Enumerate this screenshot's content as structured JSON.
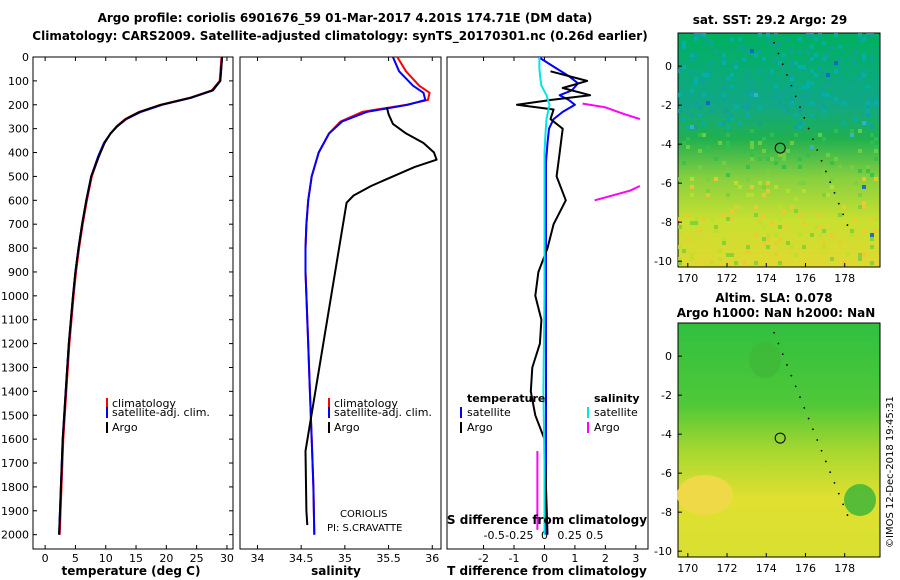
{
  "title": {
    "line1": "Argo profile: coriolis 6901676_59 01-Mar-2017 4.201S 174.71E (DM data)",
    "line2": "Climatology: CARS2009. Satellite-adjusted climatology: synTS_20170301.nc (0.26d earlier)"
  },
  "colors": {
    "climatology": "#ff0000",
    "satellite": "#0000ff",
    "argo": "#000000",
    "sat_salinity": "#00e5e5",
    "argo_salinity": "#ff00ff"
  },
  "depth_ticks": [
    "0",
    "100",
    "200",
    "300",
    "400",
    "500",
    "600",
    "700",
    "800",
    "900",
    "1000",
    "1100",
    "1200",
    "1300",
    "1400",
    "1500",
    "1600",
    "1700",
    "1800",
    "1900",
    "2000"
  ],
  "chart_data": [
    {
      "type": "line",
      "id": "temperature",
      "xlabel": "temperature (deg C)",
      "ylabel": "depth",
      "xlim": [
        -2,
        31
      ],
      "ylim": [
        2060,
        0
      ],
      "xticks": [
        "0",
        "5",
        "10",
        "15",
        "20",
        "25",
        "30"
      ],
      "xtick_values": [
        0,
        5,
        10,
        15,
        20,
        25,
        30
      ],
      "legend": [
        "climatology",
        "satellite-adj. clim.",
        "Argo"
      ],
      "series": [
        {
          "name": "climatology",
          "color": "#ff0000",
          "depth": [
            0,
            100,
            140,
            170,
            200,
            230,
            260,
            290,
            320,
            360,
            420,
            500,
            600,
            700,
            800,
            900,
            1000,
            1200,
            1400,
            1600,
            1800,
            2000
          ],
          "values": [
            29.1,
            28.8,
            27.5,
            24,
            19,
            15.5,
            13.2,
            11.8,
            10.8,
            9.8,
            8.8,
            7.7,
            6.9,
            6.2,
            5.6,
            5.1,
            4.7,
            4,
            3.5,
            3,
            2.7,
            2.4
          ]
        },
        {
          "name": "satellite-adj. clim.",
          "color": "#0000ff",
          "depth": [
            0,
            100,
            140,
            170,
            200,
            230,
            260,
            290,
            320,
            360,
            420,
            500,
            600,
            700,
            800,
            900,
            1000,
            1200,
            1400,
            1600,
            1800,
            2000
          ],
          "values": [
            29.2,
            28.9,
            27.7,
            24.2,
            19.3,
            15.8,
            13.4,
            11.9,
            10.8,
            9.7,
            8.7,
            7.6,
            6.8,
            6.1,
            5.5,
            5.0,
            4.6,
            3.9,
            3.4,
            2.9,
            2.6,
            2.3
          ]
        },
        {
          "name": "Argo",
          "color": "#000000",
          "depth": [
            0,
            100,
            140,
            170,
            200,
            230,
            260,
            290,
            320,
            360,
            420,
            500,
            600,
            700,
            800,
            900,
            1000,
            1200,
            1400,
            1600,
            1800,
            2000
          ],
          "values": [
            29.2,
            28.9,
            27.6,
            24.1,
            19.1,
            15.6,
            13.3,
            11.9,
            10.8,
            9.8,
            8.8,
            7.6,
            6.8,
            6.1,
            5.5,
            5.0,
            4.6,
            3.9,
            3.4,
            2.9,
            2.6,
            2.3
          ]
        }
      ]
    },
    {
      "type": "line",
      "id": "salinity",
      "xlabel": "salinity",
      "ylabel": "depth",
      "xlim": [
        33.8,
        36.1
      ],
      "ylim": [
        2060,
        0
      ],
      "xticks": [
        "34",
        "34.5",
        "35",
        "35.5",
        "36"
      ],
      "xtick_values": [
        34,
        34.5,
        35,
        35.5,
        36
      ],
      "legend": [
        "climatology",
        "satellite-adj. clim.",
        "Argo"
      ],
      "series": [
        {
          "name": "climatology",
          "color": "#ff0000",
          "depth": [
            0,
            60,
            120,
            150,
            180,
            200,
            230,
            270,
            320,
            400,
            500,
            600,
            700,
            800,
            900,
            1000,
            1200,
            1400,
            1600,
            1800,
            2000
          ],
          "values": [
            35.6,
            35.7,
            35.85,
            35.97,
            35.95,
            35.7,
            35.2,
            34.95,
            34.82,
            34.7,
            34.62,
            34.58,
            34.56,
            34.55,
            34.55,
            34.56,
            34.58,
            34.6,
            34.62,
            34.64,
            34.65
          ]
        },
        {
          "name": "satellite-adj. clim.",
          "color": "#0000ff",
          "depth": [
            0,
            60,
            120,
            150,
            180,
            200,
            230,
            270,
            320,
            400,
            500,
            600,
            700,
            800,
            900,
            1000,
            1200,
            1400,
            1600,
            1800,
            2000
          ],
          "values": [
            35.55,
            35.62,
            35.78,
            35.9,
            35.92,
            35.72,
            35.25,
            34.97,
            34.82,
            34.7,
            34.62,
            34.58,
            34.56,
            34.55,
            34.55,
            34.56,
            34.58,
            34.6,
            34.62,
            34.64,
            34.65
          ]
        },
        {
          "name": "Argo",
          "color": "#000000",
          "depth": [
            210,
            240,
            280,
            320,
            360,
            400,
            430,
            460,
            500,
            540,
            580,
            610,
            1650,
            1900,
            1960
          ],
          "values": [
            35.48,
            35.5,
            35.55,
            35.7,
            35.9,
            36.02,
            36.05,
            35.8,
            35.55,
            35.3,
            35.1,
            35.02,
            34.55,
            34.56,
            34.57
          ]
        }
      ]
    },
    {
      "type": "line",
      "id": "difference",
      "xlabel": "T difference from climatology",
      "xlabel2": "S difference from climatology",
      "ylabel": "depth",
      "xlim": [
        -3.2,
        3.4
      ],
      "ylim": [
        2060,
        0
      ],
      "xticks": [
        "-2",
        "-1",
        "0",
        "1",
        "2",
        "3"
      ],
      "xtick_values": [
        -2,
        -1,
        0,
        1,
        2,
        3
      ],
      "sticks": [
        "-0.5",
        "-0.25",
        "0",
        "0.25",
        "0.5"
      ],
      "stick_values": [
        -0.5,
        -0.25,
        0,
        0.25,
        0.5
      ],
      "legend_left_title": "temperature",
      "legend_left": [
        "satellite",
        "Argo"
      ],
      "legend_right_title": "salinity",
      "legend_right": [
        "satellite",
        "Argo"
      ],
      "series": [
        {
          "name": "T satellite",
          "color": "#0000ff",
          "depth": [
            0,
            40,
            80,
            110,
            140,
            160,
            180,
            200,
            230,
            260,
            300,
            360,
            440,
            520,
            600,
            700,
            800,
            1000,
            1400,
            1700,
            2000
          ],
          "values": [
            -0.2,
            0.3,
            0.8,
            1.1,
            0.9,
            0.5,
            0.8,
            1.0,
            0.6,
            0.3,
            0.15,
            0.1,
            0.05,
            0.05,
            0.05,
            0.05,
            0.05,
            0.05,
            0.05,
            0.05,
            0.05
          ]
        },
        {
          "name": "T Argo",
          "color": "#000000",
          "depth": [
            60,
            100,
            130,
            160,
            180,
            200,
            220,
            260,
            300,
            400,
            500,
            600,
            700,
            800,
            900,
            1000,
            1100,
            1200,
            1300,
            1400,
            1500,
            1600,
            1800,
            2000
          ],
          "values": [
            0.2,
            1.4,
            0.6,
            1.5,
            0.2,
            -0.9,
            0.3,
            0.2,
            0.6,
            0.5,
            0.4,
            0.7,
            0.3,
            0.1,
            -0.2,
            -0.3,
            -0.1,
            -0.15,
            -0.4,
            -0.45,
            -0.3,
            0.0,
            0.05,
            0.1
          ]
        },
        {
          "name": "S satellite",
          "color": "#00e5e5",
          "depth": [
            0,
            50,
            90,
            120,
            160,
            200,
            260,
            320,
            400,
            500,
            700,
            1000,
            1400,
            1700,
            2000
          ],
          "values": [
            -0.05,
            -0.05,
            -0.04,
            -0.03,
            0.02,
            0.05,
            0.02,
            0.01,
            0.0,
            0.0,
            0.0,
            0.0,
            -0.01,
            0.0,
            0.0
          ]
        },
        {
          "name": "S Argo",
          "color": "#ff00ff",
          "depth": [
            195,
            210,
            240,
            260
          ],
          "values": [
            0.38,
            0.6,
            0.8,
            0.95
          ]
        },
        {
          "name": "S Argo deep",
          "color": "#ff00ff",
          "depth": [
            600,
            560,
            540
          ],
          "values": [
            0.5,
            0.85,
            0.95
          ]
        },
        {
          "name": "S Argo bottom",
          "color": "#ff00ff",
          "depth": [
            1650,
            1980
          ],
          "values": [
            -0.07,
            -0.07
          ]
        }
      ]
    }
  ],
  "maps": [
    {
      "id": "sst",
      "title": "sat. SST: 29.2 Argo: 29",
      "xticks": [
        "170",
        "172",
        "174",
        "176",
        "178"
      ],
      "xtick_values": [
        170,
        172,
        174,
        176,
        178
      ],
      "yticks": [
        "0",
        "-2",
        "-4",
        "-6",
        "-8",
        "-10"
      ],
      "ytick_values": [
        0,
        -2,
        -4,
        -6,
        -8,
        -10
      ],
      "xlim": [
        169.5,
        179.8
      ],
      "ylim": [
        1.7,
        -10.3
      ],
      "marker": {
        "lon": 174.71,
        "lat": -4.201
      }
    },
    {
      "id": "sla",
      "title": "Altim. SLA: 0.078",
      "subtitle": "Argo h1000: NaN h2000: NaN",
      "xticks": [
        "170",
        "172",
        "174",
        "176",
        "178"
      ],
      "xtick_values": [
        170,
        172,
        174,
        176,
        178
      ],
      "yticks": [
        "0",
        "-2",
        "-4",
        "-6",
        "-8",
        "-10"
      ],
      "ytick_values": [
        0,
        -2,
        -4,
        -6,
        -8,
        -10
      ],
      "xlim": [
        169.5,
        179.8
      ],
      "ylim": [
        1.7,
        -10.3
      ],
      "marker": {
        "lon": 174.71,
        "lat": -4.201
      }
    }
  ],
  "stamp": "CORIOLIS",
  "pi": "PI: S.CRAVATTE",
  "credit": "©IMOS 12-Dec-2018 19:45:31"
}
